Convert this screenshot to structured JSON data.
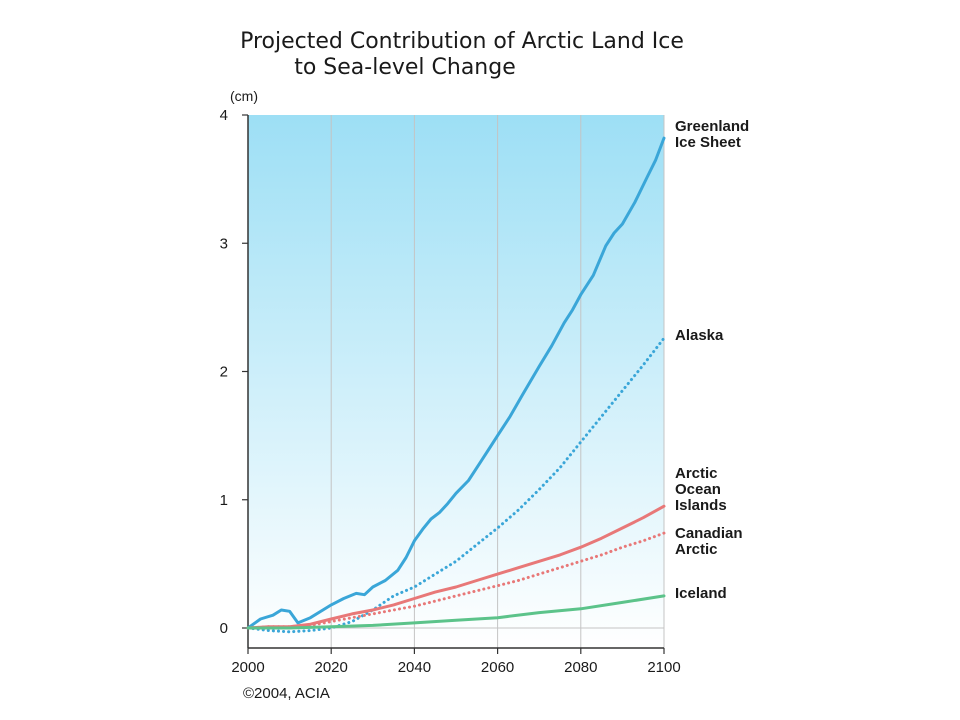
{
  "chart_data": {
    "type": "line",
    "title_lines": [
      "Projected Contribution of Arctic Land Ice",
      "to Sea-level Change"
    ],
    "y_unit": "(cm)",
    "xlim": [
      2000,
      2100
    ],
    "ylim": [
      0,
      4
    ],
    "x_ticks": [
      "2000",
      "2020",
      "2040",
      "2060",
      "2080",
      "2100"
    ],
    "y_ticks": [
      "0",
      "1",
      "2",
      "3",
      "4"
    ],
    "grid": "vertical",
    "legend": "labels at right end of each line",
    "series": [
      {
        "name": "Greenland Ice Sheet",
        "label_lines": [
          "Greenland",
          "Ice Sheet"
        ],
        "color": "#3aa6d8",
        "style": "solid",
        "x": [
          2000,
          2003,
          2006,
          2008,
          2010,
          2012,
          2015,
          2018,
          2020,
          2023,
          2026,
          2028,
          2030,
          2033,
          2036,
          2038,
          2040,
          2042,
          2044,
          2046,
          2048,
          2050,
          2053,
          2056,
          2058,
          2060,
          2063,
          2066,
          2070,
          2073,
          2076,
          2078,
          2080,
          2083,
          2086,
          2088,
          2090,
          2093,
          2096,
          2098,
          2100
        ],
        "y": [
          0.0,
          0.07,
          0.1,
          0.14,
          0.13,
          0.04,
          0.08,
          0.14,
          0.18,
          0.23,
          0.27,
          0.26,
          0.32,
          0.37,
          0.45,
          0.55,
          0.68,
          0.77,
          0.85,
          0.9,
          0.97,
          1.05,
          1.15,
          1.3,
          1.4,
          1.5,
          1.65,
          1.82,
          2.04,
          2.2,
          2.38,
          2.48,
          2.6,
          2.75,
          2.98,
          3.08,
          3.15,
          3.32,
          3.52,
          3.65,
          3.82
        ]
      },
      {
        "name": "Alaska",
        "label_lines": [
          "Alaska"
        ],
        "color": "#3aa6d8",
        "style": "dotted",
        "x": [
          2000,
          2005,
          2010,
          2015,
          2020,
          2025,
          2030,
          2035,
          2040,
          2045,
          2050,
          2055,
          2060,
          2065,
          2070,
          2075,
          2080,
          2085,
          2090,
          2095,
          2100
        ],
        "y": [
          0.0,
          -0.02,
          -0.03,
          -0.02,
          0.0,
          0.05,
          0.14,
          0.25,
          0.32,
          0.42,
          0.52,
          0.65,
          0.78,
          0.92,
          1.08,
          1.25,
          1.45,
          1.65,
          1.85,
          2.05,
          2.26
        ]
      },
      {
        "name": "Arctic Ocean Islands",
        "label_lines": [
          "Arctic",
          "Ocean",
          "Islands"
        ],
        "color": "#e87878",
        "style": "solid",
        "x": [
          2000,
          2005,
          2010,
          2015,
          2020,
          2025,
          2030,
          2035,
          2040,
          2045,
          2050,
          2055,
          2060,
          2065,
          2070,
          2075,
          2080,
          2085,
          2090,
          2095,
          2100
        ],
        "y": [
          0.0,
          0.01,
          0.01,
          0.03,
          0.07,
          0.11,
          0.14,
          0.18,
          0.23,
          0.28,
          0.32,
          0.37,
          0.42,
          0.47,
          0.52,
          0.57,
          0.63,
          0.7,
          0.78,
          0.86,
          0.95
        ]
      },
      {
        "name": "Canadian Arctic",
        "label_lines": [
          "Canadian",
          "Arctic"
        ],
        "color": "#e87878",
        "style": "dotted",
        "x": [
          2000,
          2005,
          2010,
          2015,
          2020,
          2025,
          2030,
          2035,
          2040,
          2045,
          2050,
          2055,
          2060,
          2065,
          2070,
          2075,
          2080,
          2085,
          2090,
          2095,
          2100
        ],
        "y": [
          0.0,
          0.01,
          0.01,
          0.02,
          0.05,
          0.08,
          0.11,
          0.14,
          0.17,
          0.21,
          0.25,
          0.29,
          0.33,
          0.37,
          0.42,
          0.47,
          0.52,
          0.57,
          0.63,
          0.68,
          0.74
        ]
      },
      {
        "name": "Iceland",
        "label_lines": [
          "Iceland"
        ],
        "color": "#5cc38a",
        "style": "solid",
        "x": [
          2000,
          2010,
          2020,
          2030,
          2040,
          2050,
          2060,
          2070,
          2080,
          2090,
          2100
        ],
        "y": [
          0.0,
          0.0,
          0.01,
          0.02,
          0.04,
          0.06,
          0.08,
          0.12,
          0.15,
          0.2,
          0.25
        ]
      }
    ]
  },
  "credit": "©2004, ACIA",
  "colors": {
    "plot_gradient_top": "#9ddff5",
    "plot_gradient_bottom": "#ffffff",
    "axis": "#333333",
    "grid": "#c4c4c4"
  }
}
